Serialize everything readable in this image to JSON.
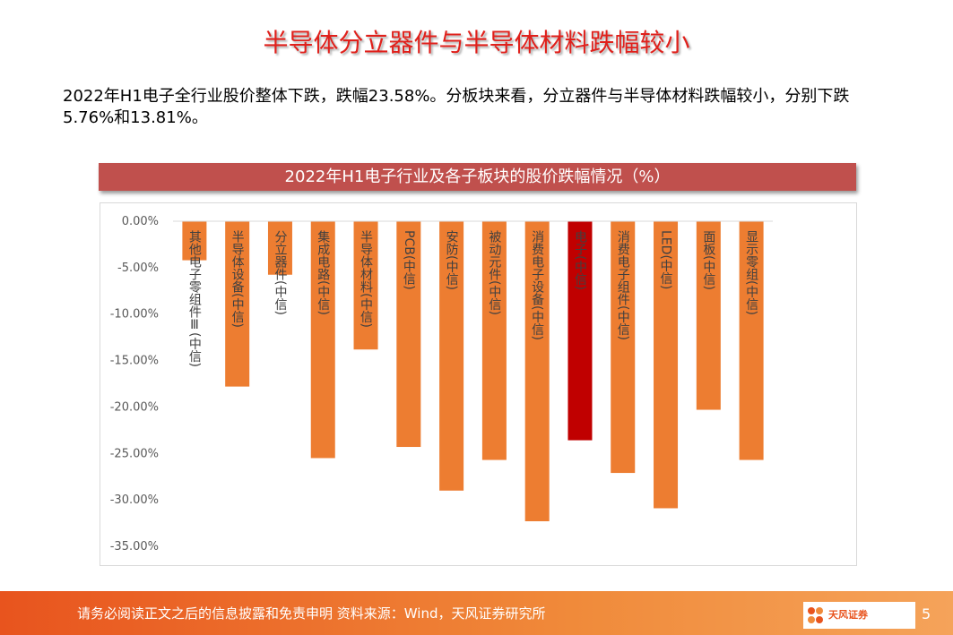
{
  "header": {
    "title": "半导体分立器件与半导体材料跌幅较小"
  },
  "paragraph": "2022年H1电子全行业股价整体下跌，跌幅23.58%。分板块来看，分立器件与半导体材料跌幅较小，分别下跌5.76%和13.81%。",
  "chart_data": {
    "type": "bar",
    "title": "2022年H1电子行业及各子板块的股价跌幅情况（%）",
    "categories": [
      "其他电子零组件Ⅲ(中信)",
      "半导体设备(中信)",
      "分立器件(中信)",
      "集成电路(中信)",
      "半导体材料(中信)",
      "PCB(中信)",
      "安防(中信)",
      "被动元件(中信)",
      "消费电子设备(中信)",
      "电子(中信)",
      "消费电子组件(中信)",
      "LED(中信)",
      "面板(中信)",
      "显示零组(中信)"
    ],
    "values": [
      -4.2,
      -17.8,
      -5.76,
      -25.5,
      -13.81,
      -24.3,
      -29.0,
      -25.7,
      -32.3,
      -23.58,
      -27.1,
      -30.9,
      -20.3,
      -25.7
    ],
    "colors": [
      "#ed7d31",
      "#ed7d31",
      "#ed7d31",
      "#ed7d31",
      "#ed7d31",
      "#ed7d31",
      "#ed7d31",
      "#ed7d31",
      "#ed7d31",
      "#c00000",
      "#ed7d31",
      "#ed7d31",
      "#ed7d31",
      "#ed7d31"
    ],
    "ylim": [
      -35,
      0
    ],
    "yticks": [
      {
        "value": 0,
        "label": "0.00%"
      },
      {
        "value": -5,
        "label": "-5.00%"
      },
      {
        "value": -10,
        "label": "-10.00%"
      },
      {
        "value": -15,
        "label": "-15.00%"
      },
      {
        "value": -20,
        "label": "-20.00%"
      },
      {
        "value": -25,
        "label": "-25.00%"
      },
      {
        "value": -30,
        "label": "-30.00%"
      },
      {
        "value": -35,
        "label": "-35.00%"
      }
    ]
  },
  "footer": {
    "text": "请务必阅读正文之后的信息披露和免责申明  资料来源：Wind，天风证券研究所",
    "logo": "天风证券",
    "page": "5"
  }
}
